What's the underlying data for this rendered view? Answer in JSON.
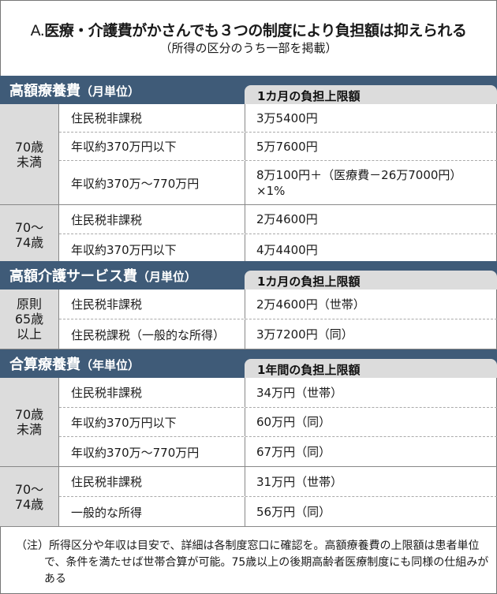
{
  "title_prefix": "A.",
  "title": "医療・介護費がかさんでも３つの制度により負担額は抑えられる",
  "subtitle": "（所得の区分のうち一部を掲載）",
  "colors": {
    "header": "#3f5b78",
    "tab": "#dcdcdc",
    "group_label": "#dcdcdc"
  },
  "sections": [
    {
      "name": "高額療養費",
      "unit": "（月単位）",
      "column_label": "1カ月の負担上限額",
      "groups": [
        {
          "label": "70歳\n未満",
          "rows": [
            {
              "category": "住民税非課税",
              "limit": "3万5400円"
            },
            {
              "category": "年収約370万円以下",
              "limit": "5万7600円"
            },
            {
              "category": "年収約370万～770万円",
              "limit": "8万100円＋（医療費－26万7000円）\n×1%"
            }
          ]
        },
        {
          "label": "70～\n74歳",
          "rows": [
            {
              "category": "住民税非課税",
              "limit": "2万4600円"
            },
            {
              "category": "年収約370万円以下",
              "limit": "4万4400円"
            }
          ]
        }
      ]
    },
    {
      "name": "高額介護サービス費",
      "unit": "（月単位）",
      "column_label": "1カ月の負担上限額",
      "groups": [
        {
          "label": "原則\n65歳\n以上",
          "rows": [
            {
              "category": "住民税非課税",
              "limit": "2万4600円（世帯）"
            },
            {
              "category": "住民税課税（一般的な所得）",
              "limit": "3万7200円（同）"
            }
          ]
        }
      ]
    },
    {
      "name": "合算療養費",
      "unit": "（年単位）",
      "column_label": "1年間の負担上限額",
      "groups": [
        {
          "label": "70歳\n未満",
          "rows": [
            {
              "category": "住民税非課税",
              "limit": "34万円（世帯）"
            },
            {
              "category": "年収約370万円以下",
              "limit": "60万円（同）"
            },
            {
              "category": "年収約370万～770万円",
              "limit": "67万円（同）"
            }
          ]
        },
        {
          "label": "70～\n74歳",
          "rows": [
            {
              "category": "住民税非課税",
              "limit": "31万円（世帯）"
            },
            {
              "category": "一般的な所得",
              "limit": "56万円（同）"
            }
          ]
        }
      ]
    }
  ],
  "note": "（注）所得区分や年収は目安で、詳細は各制度窓口に確認を。高額療養費の上限額は患者単位で、条件を満たせば世帯合算が可能。75歳以上の後期高齢者医療制度にも同様の仕組みがある"
}
